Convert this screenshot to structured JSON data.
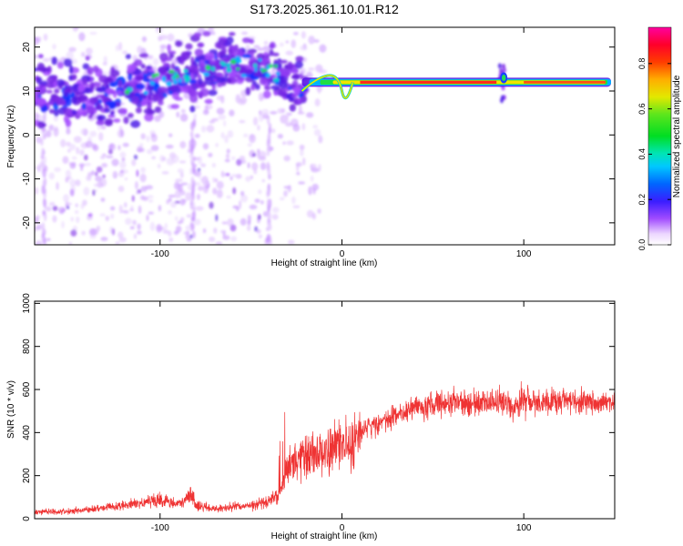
{
  "title": "S173.2025.361.10.01.R12",
  "chart_data": [
    {
      "type": "heatmap",
      "xlabel": "Height of straight line (km)",
      "ylabel": "Frequency (Hz)",
      "xlim": [
        -169,
        150
      ],
      "ylim": [
        -25,
        24.5
      ],
      "xticks": [
        -100,
        0,
        100
      ],
      "yticks": [
        -20,
        -10,
        0,
        10,
        20
      ],
      "colorbar": {
        "label": "Normalized spectral amplitude",
        "range": [
          0,
          0.96
        ],
        "ticks": [
          0.0,
          0.2,
          0.4,
          0.6,
          0.8
        ]
      },
      "dominant_frequency_track": [
        {
          "x": -165,
          "y": 9
        },
        {
          "x": -150,
          "y": 9
        },
        {
          "x": -130,
          "y": 9
        },
        {
          "x": -110,
          "y": 11
        },
        {
          "x": -90,
          "y": 13
        },
        {
          "x": -70,
          "y": 15
        },
        {
          "x": -50,
          "y": 16
        },
        {
          "x": -35,
          "y": 14
        },
        {
          "x": -20,
          "y": 10
        },
        {
          "x": -10,
          "y": 12
        },
        {
          "x": 0,
          "y": 11
        },
        {
          "x": 10,
          "y": 12
        },
        {
          "x": 50,
          "y": 12
        },
        {
          "x": 100,
          "y": 12
        },
        {
          "x": 148,
          "y": 12
        }
      ]
    },
    {
      "type": "line",
      "xlabel": "Height of straight line (km)",
      "ylabel": "SNR (10 * v/v)",
      "xlim": [
        -169,
        150
      ],
      "ylim": [
        0,
        1010
      ],
      "xticks": [
        -100,
        0,
        100
      ],
      "yticks": [
        0,
        200,
        400,
        600,
        800,
        1000
      ],
      "color": "#ef3333",
      "series": [
        {
          "x": [
            -169,
            -150,
            -130,
            -110,
            -100,
            -90,
            -82,
            -80,
            -70,
            -60,
            -50,
            -40,
            -33,
            -30,
            -25,
            -20,
            -15,
            -10,
            -5,
            0,
            5,
            10,
            15,
            20,
            30,
            40,
            50,
            60,
            70,
            80,
            90,
            95,
            100,
            105,
            110,
            120,
            130,
            140,
            150
          ],
          "y": [
            30,
            35,
            50,
            75,
            85,
            70,
            110,
            60,
            45,
            55,
            60,
            80,
            130,
            260,
            260,
            300,
            320,
            310,
            330,
            360,
            320,
            400,
            420,
            440,
            480,
            510,
            530,
            540,
            535,
            540,
            545,
            500,
            560,
            545,
            540,
            545,
            545,
            540,
            545
          ]
        }
      ]
    }
  ]
}
